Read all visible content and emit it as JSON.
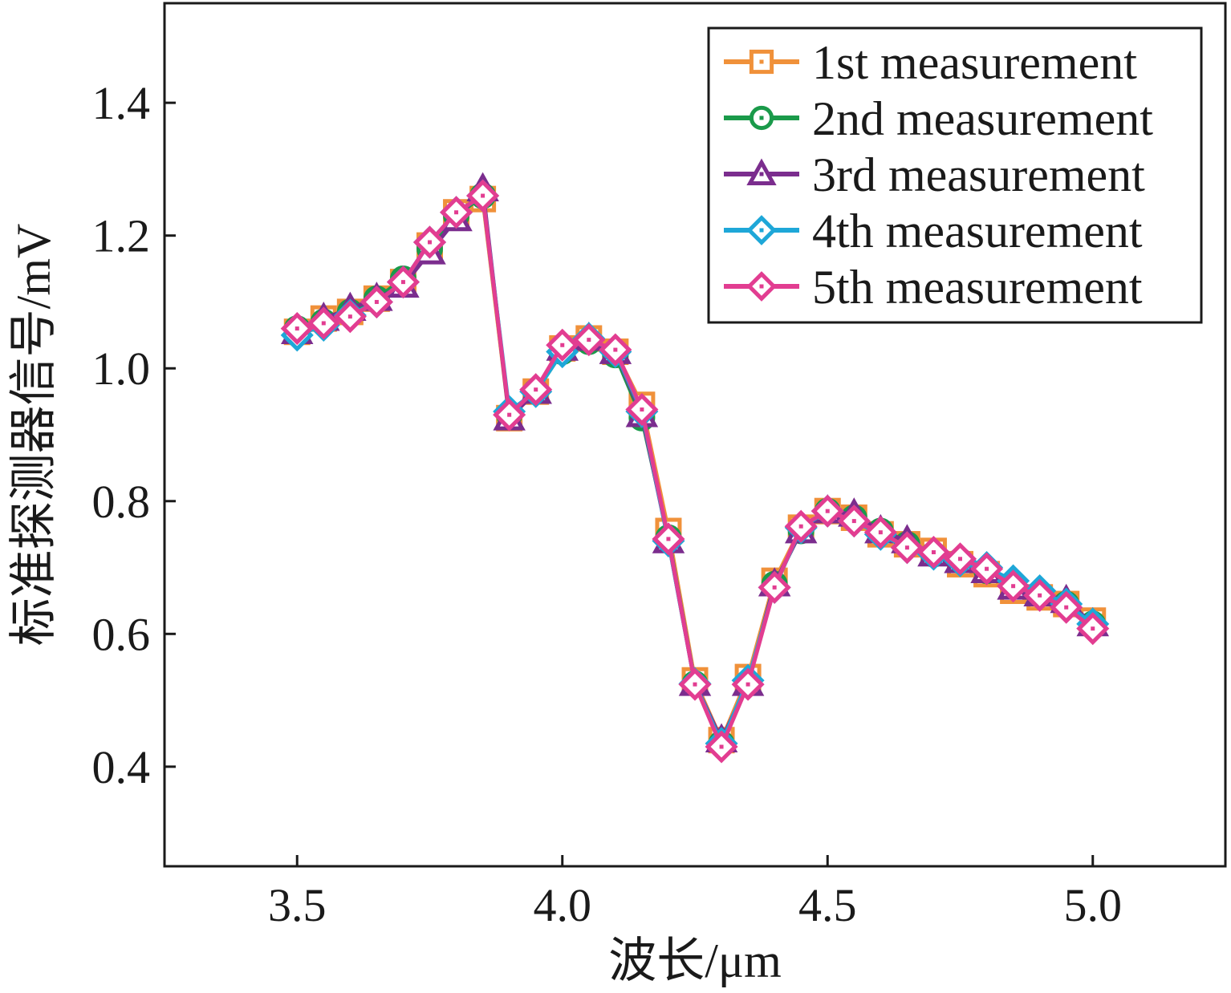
{
  "chart_data": {
    "type": "line",
    "title": "",
    "xlabel": "波长/μm",
    "ylabel": "标准探测器信号/mV",
    "xlim": [
      3.25,
      5.25
    ],
    "ylim": [
      0.25,
      1.55
    ],
    "xticks": [
      "3.5",
      "4.0",
      "4.5",
      "5.0"
    ],
    "yticks": [
      "0.4",
      "0.6",
      "0.8",
      "1.0",
      "1.2",
      "1.4"
    ],
    "x": [
      3.5,
      3.55,
      3.6,
      3.65,
      3.7,
      3.75,
      3.8,
      3.85,
      3.9,
      3.95,
      4.0,
      4.05,
      4.1,
      4.15,
      4.2,
      4.25,
      4.3,
      4.35,
      4.4,
      4.45,
      4.5,
      4.55,
      4.6,
      4.65,
      4.7,
      4.75,
      4.8,
      4.85,
      4.9,
      4.95,
      5.0
    ],
    "legend_position": "top-right",
    "series": [
      {
        "name": "1st measurement",
        "color": "#f0913a",
        "marker": "square",
        "values": [
          1.055,
          1.075,
          1.085,
          1.105,
          1.13,
          1.185,
          1.235,
          1.255,
          0.925,
          0.965,
          1.03,
          1.045,
          1.025,
          0.945,
          0.755,
          0.53,
          0.44,
          0.535,
          0.68,
          0.76,
          0.785,
          0.775,
          0.75,
          0.735,
          0.725,
          0.705,
          0.69,
          0.665,
          0.655,
          0.645,
          0.62
        ]
      },
      {
        "name": "2nd measurement",
        "color": "#1a9a4a",
        "marker": "circle",
        "values": [
          1.06,
          1.07,
          1.085,
          1.105,
          1.135,
          1.18,
          1.23,
          1.26,
          0.93,
          0.965,
          1.025,
          1.04,
          1.02,
          0.925,
          0.745,
          0.525,
          0.435,
          0.525,
          0.675,
          0.755,
          0.785,
          0.775,
          0.755,
          0.735,
          0.72,
          0.71,
          0.695,
          0.675,
          0.66,
          0.645,
          0.615
        ]
      },
      {
        "name": "3rd measurement",
        "color": "#7b2d8e",
        "marker": "triangle",
        "values": [
          1.055,
          1.075,
          1.09,
          1.105,
          1.125,
          1.175,
          1.225,
          1.27,
          0.925,
          0.965,
          1.03,
          1.045,
          1.025,
          0.93,
          0.74,
          0.525,
          0.44,
          0.525,
          0.675,
          0.755,
          0.785,
          0.78,
          0.755,
          0.74,
          0.72,
          0.71,
          0.695,
          0.67,
          0.66,
          0.65,
          0.615
        ]
      },
      {
        "name": "4th measurement",
        "color": "#1ea7d8",
        "marker": "diamond",
        "values": [
          1.05,
          1.065,
          1.08,
          1.1,
          1.13,
          1.19,
          1.235,
          1.26,
          0.935,
          0.965,
          1.025,
          1.045,
          1.025,
          0.935,
          0.74,
          0.525,
          0.435,
          0.53,
          0.67,
          0.76,
          0.785,
          0.77,
          0.75,
          0.73,
          0.72,
          0.71,
          0.7,
          0.68,
          0.665,
          0.645,
          0.615
        ]
      },
      {
        "name": "5th measurement",
        "color": "#e23d91",
        "marker": "diamond",
        "values": [
          1.06,
          1.068,
          1.078,
          1.1,
          1.13,
          1.19,
          1.235,
          1.26,
          0.93,
          0.968,
          1.035,
          1.043,
          1.028,
          0.938,
          0.743,
          0.524,
          0.43,
          0.524,
          0.67,
          0.762,
          0.785,
          0.77,
          0.753,
          0.73,
          0.723,
          0.713,
          0.698,
          0.672,
          0.658,
          0.64,
          0.608
        ]
      }
    ]
  }
}
